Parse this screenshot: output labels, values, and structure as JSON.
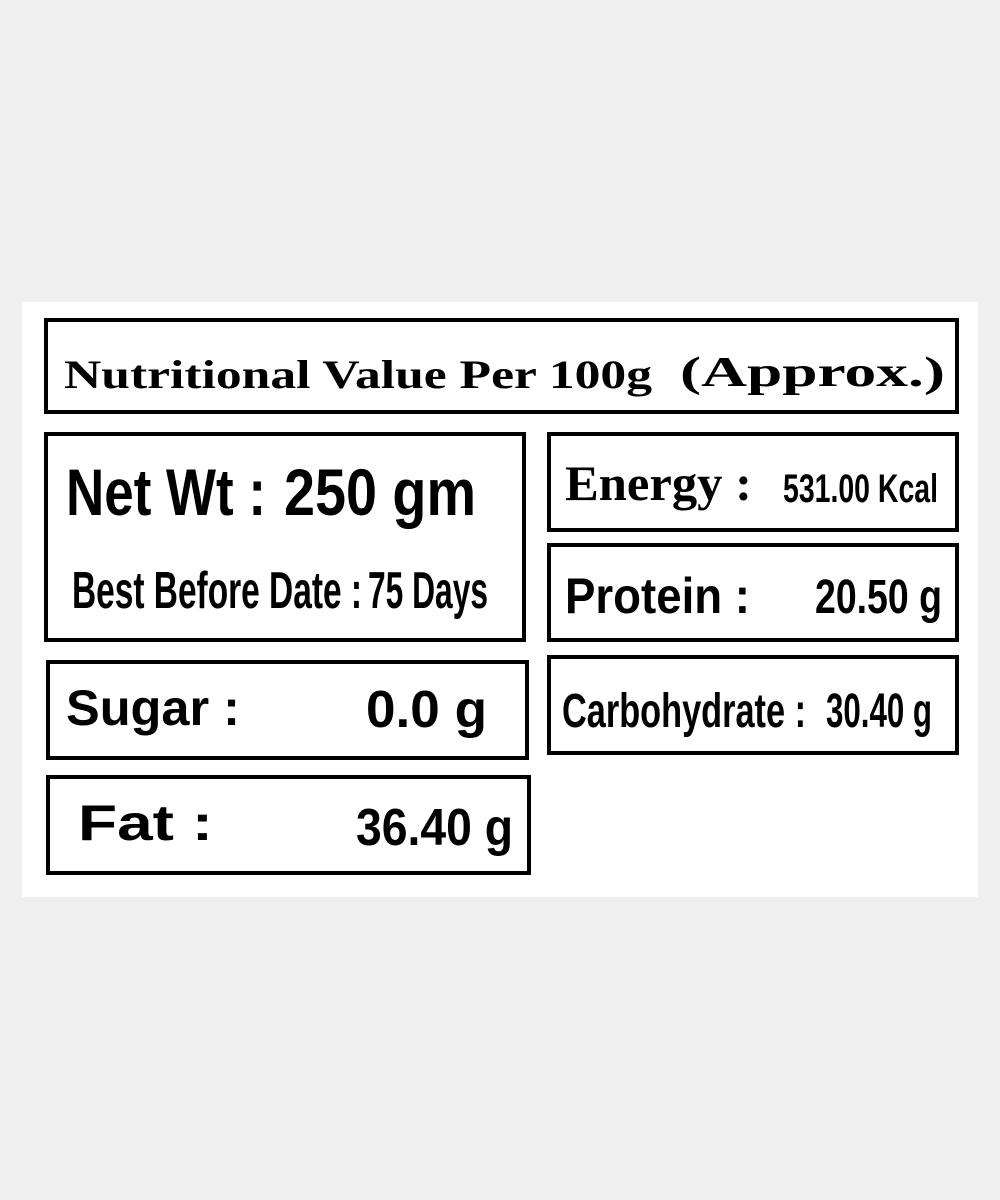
{
  "header": {
    "title": "Nutritional Value Per 100g",
    "note": "(Approx.)"
  },
  "net_weight": {
    "label": "Net Wt :",
    "value": "250 gm"
  },
  "best_before": {
    "label": "Best Before Date :",
    "value": "75 Days"
  },
  "nutrients": [
    {
      "label": "Energy :",
      "value": "531.00 Kcal"
    },
    {
      "label": "Protein :",
      "value": "20.50 g"
    },
    {
      "label": "Carbohydrate :",
      "value": "30.40 g"
    },
    {
      "label": "Sugar :",
      "value": "0.0 g"
    },
    {
      "label": "Fat :",
      "value": "36.40 g"
    }
  ]
}
